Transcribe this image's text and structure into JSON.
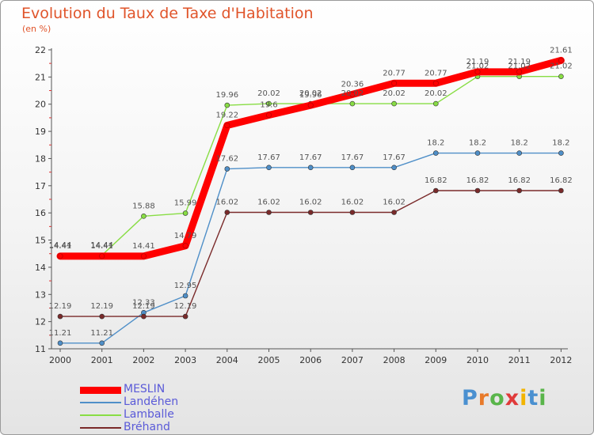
{
  "chart_data": {
    "type": "line",
    "title": "Evolution du Taux de Taxe d'Habitation",
    "unit_label": "(en %)",
    "x": [
      "2000",
      "2001",
      "2002",
      "2003",
      "2004",
      "2005",
      "2006",
      "2007",
      "2008",
      "2009",
      "2010",
      "2011",
      "2012"
    ],
    "ylim": [
      11,
      22
    ],
    "yticks": [
      11,
      12,
      13,
      14,
      15,
      16,
      17,
      18,
      19,
      20,
      21,
      22
    ],
    "grid": false,
    "legend_position": "bottom-left",
    "series": [
      {
        "name": "MESLIN",
        "color": "#ff0000",
        "labels": [
          "14.41",
          "14.41",
          "14.41",
          "14.79",
          "19.22",
          "19.6",
          "19.96",
          "20.36",
          "20.77",
          "20.77",
          "21.19",
          "21.19",
          "21.61"
        ],
        "values": [
          14.41,
          14.41,
          14.41,
          14.79,
          19.22,
          19.6,
          19.96,
          20.36,
          20.77,
          20.77,
          21.19,
          21.19,
          21.61
        ]
      },
      {
        "name": "Landéhen",
        "color": "#4f8fc8",
        "labels": [
          "11.21",
          "11.21",
          "12.33",
          "12.95",
          "17.62",
          "17.67",
          "17.67",
          "17.67",
          "17.67",
          "18.2",
          "18.2",
          "18.2",
          "18.2"
        ],
        "values": [
          11.21,
          11.21,
          12.33,
          12.95,
          17.62,
          17.67,
          17.67,
          17.67,
          17.67,
          18.2,
          18.2,
          18.2,
          18.2
        ]
      },
      {
        "name": "Lamballe",
        "color": "#88dd44",
        "labels": [
          "14.44",
          "14.44",
          "15.88",
          "15.99",
          "19.96",
          "20.02",
          "20.02",
          "20.02",
          "20.02",
          "20.02",
          "21.02",
          "21.02",
          "21.02"
        ],
        "values": [
          14.44,
          14.44,
          15.88,
          15.99,
          19.96,
          20.02,
          20.02,
          20.02,
          20.02,
          20.02,
          21.02,
          21.02,
          21.02
        ]
      },
      {
        "name": "Bréhand",
        "color": "#7a2a2a",
        "labels": [
          "12.19",
          "12.19",
          "12.19",
          "12.19",
          "16.02",
          "16.02",
          "16.02",
          "16.02",
          "16.02",
          "16.82",
          "16.82",
          "16.82",
          "16.82"
        ],
        "values": [
          12.19,
          12.19,
          12.19,
          12.19,
          16.02,
          16.02,
          16.02,
          16.02,
          16.02,
          16.82,
          16.82,
          16.82,
          16.82
        ]
      }
    ]
  },
  "logo": {
    "letters": [
      "P",
      "r",
      "o",
      "x",
      "i",
      "t",
      "i"
    ],
    "colors": [
      "#4a90d0",
      "#e87a2a",
      "#59b54a",
      "#e03a3a",
      "#f2b400",
      "#4a90d0",
      "#59b54a"
    ]
  }
}
